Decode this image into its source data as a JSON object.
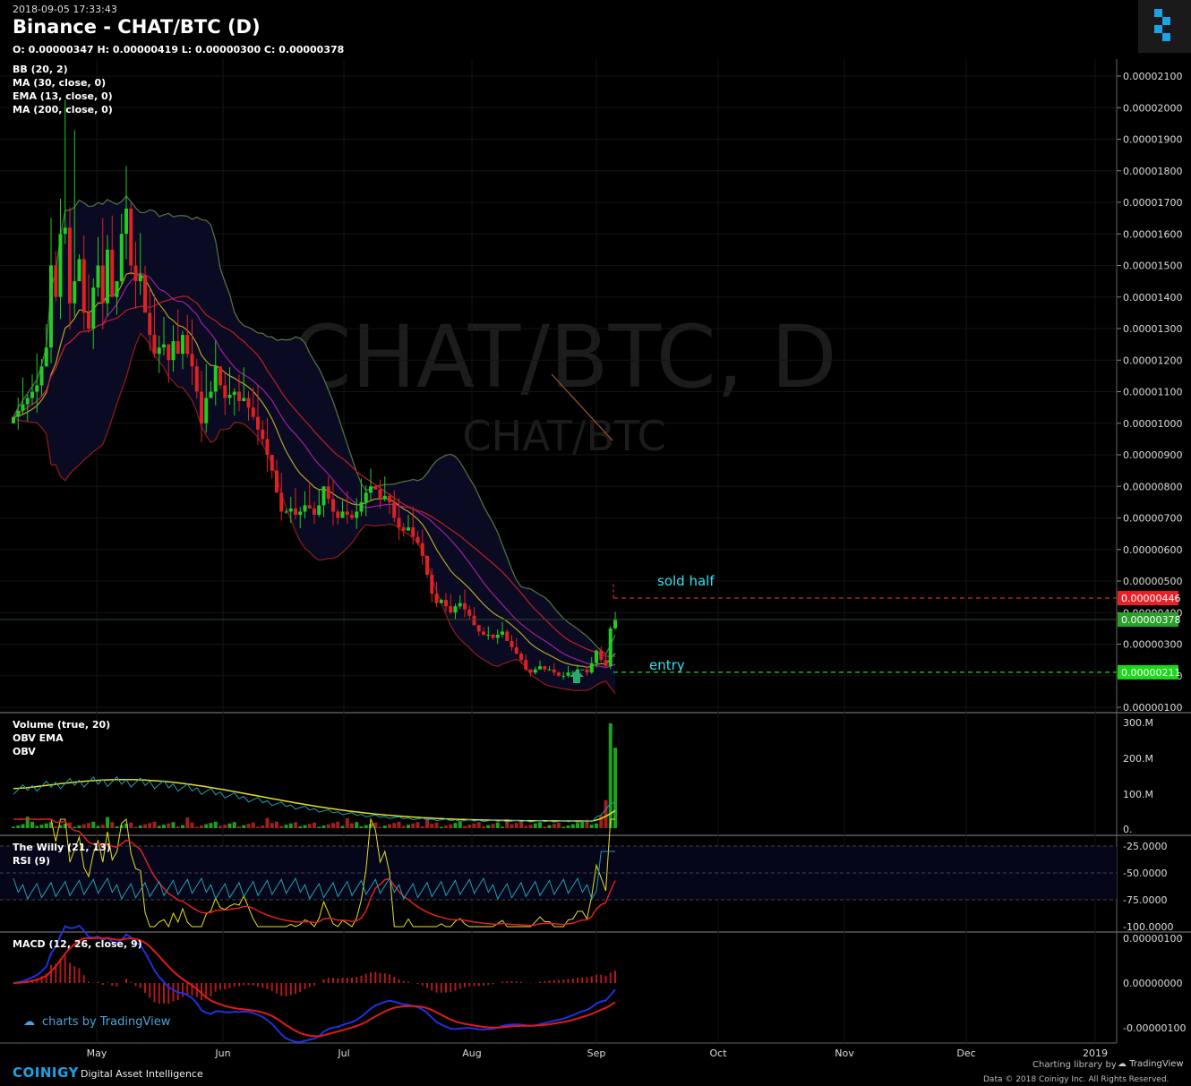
{
  "header": {
    "timestamp": "2018-09-05 17:33:43",
    "title": "Binance - CHAT/BTC (D)",
    "ohlc": "O: 0.00000347 H: 0.00000419 L: 0.00000300 C: 0.00000378"
  },
  "main_indicators": [
    "BB (20, 2)",
    "MA (30, close, 0)",
    "EMA (13, close, 0)",
    "MA (200, close, 0)"
  ],
  "volume_indicators": [
    "Volume (true, 20)",
    "OBV EMA",
    "OBV"
  ],
  "rsi_indicators": [
    "The Willy (21, 13)",
    "RSI (9)"
  ],
  "macd_indicators": [
    "MACD (12, 26, close, 9)"
  ],
  "watermark": {
    "big": "CHAT/BTC, D",
    "small": "CHAT/BTC"
  },
  "annotations": {
    "sold_half": "sold half",
    "entry": "entry"
  },
  "price_labels": {
    "sold": "0.00000446",
    "last": "0.00000378",
    "entry": "0.00000211"
  },
  "colors": {
    "up": "#22cc22",
    "down": "#dd2222",
    "sold_line": "#ff3333",
    "entry_line": "#33ff33",
    "annotation": "#33e0f0",
    "bb": "#4a6a3a"
  },
  "price_axis_ticks": [
    "0.00002100",
    "0.00002000",
    "0.00001900",
    "0.00001800",
    "0.00001700",
    "0.00001600",
    "0.00001500",
    "0.00001400",
    "0.00001300",
    "0.00001200",
    "0.00001100",
    "0.00001000",
    "0.00000900",
    "0.00000800",
    "0.00000700",
    "0.00000600",
    "0.00000500",
    "0.00000400",
    "0.00000300",
    "0.00000200",
    "0.00000100"
  ],
  "volume_axis_ticks": [
    "300.M",
    "200.M",
    "100.M",
    "0."
  ],
  "rsi_axis_ticks": [
    "-25.0000",
    "-50.0000",
    "-75.0000",
    "-100.0000"
  ],
  "macd_axis_ticks": [
    "0.00000100",
    "0.00000000",
    "-0.00000100"
  ],
  "time_axis": [
    "May",
    "Jun",
    "Jul",
    "Aug",
    "Sep",
    "Oct",
    "Nov",
    "Dec",
    "2019"
  ],
  "footer": {
    "brand": "COINIGY",
    "tagline": "Digital Asset Intelligence",
    "charting_by": "Charting library by",
    "tv_brand": "TradingView",
    "data_credit": "Data © 2018  Coinigy Inc. All Rights Reserved.",
    "charts_by": "charts by TradingView"
  },
  "chart_data": {
    "type": "candlestick",
    "symbol": "CHAT/BTC",
    "exchange": "Binance",
    "interval": "D",
    "ylim": [
      1e-06,
      2.15e-05
    ],
    "closes": [
      1.02e-05,
      1.04e-05,
      1.06e-05,
      1.08e-05,
      1.1e-05,
      1.12e-05,
      1.18e-05,
      1.24e-05,
      1.5e-05,
      1.4e-05,
      1.6e-05,
      1.62e-05,
      1.38e-05,
      1.45e-05,
      1.52e-05,
      1.35e-05,
      1.3e-05,
      1.43e-05,
      1.5e-05,
      1.38e-05,
      1.55e-05,
      1.4e-05,
      1.45e-05,
      1.6e-05,
      1.68e-05,
      1.5e-05,
      1.45e-05,
      1.47e-05,
      1.35e-05,
      1.28e-05,
      1.22e-05,
      1.24e-05,
      1.25e-05,
      1.2e-05,
      1.26e-05,
      1.22e-05,
      1.28e-05,
      1.22e-05,
      1.18e-05,
      1.1e-05,
      1e-05,
      1.08e-05,
      1.1e-05,
      1.18e-05,
      1.12e-05,
      1.08e-05,
      1.09e-05,
      1.1e-05,
      1.07e-05,
      1.08e-05,
      1.05e-05,
      1.02e-05,
      9.8e-06,
      9.5e-06,
      9e-06,
      8.5e-06,
      7.8e-06,
      7.2e-06,
      7.2e-06,
      7.3e-06,
      7.1e-06,
      7.2e-06,
      7.4e-06,
      7.3e-06,
      7.1e-06,
      7.4e-06,
      8e-06,
      7.6e-06,
      7.2e-06,
      7e-06,
      7.2e-06,
      7.1e-06,
      7e-06,
      7.2e-06,
      7.5e-06,
      7.8e-06,
      8e-06,
      7.9e-06,
      7.6e-06,
      7.7e-06,
      7.5e-06,
      7e-06,
      6.7e-06,
      6.6e-06,
      6.7e-06,
      6.4e-06,
      6.2e-06,
      5.8e-06,
      5.2e-06,
      4.6e-06,
      4.3e-06,
      4.4e-06,
      4.2e-06,
      4e-06,
      4.2e-06,
      4.3e-06,
      4.1e-06,
      3.9e-06,
      3.6e-06,
      3.4e-06,
      3.3e-06,
      3.3e-06,
      3.2e-06,
      3.3e-06,
      3.4e-06,
      3.1e-06,
      2.9e-06,
      2.7e-06,
      2.5e-06,
      2.2e-06,
      2.1e-06,
      2.2e-06,
      2.3e-06,
      2.2e-06,
      2.2e-06,
      2.1e-06,
      2e-06,
      2e-06,
      2.1e-06,
      2.1e-06,
      2.2e-06,
      2.2e-06,
      2.1e-06,
      2.4e-06,
      2.8e-06,
      2.5e-06,
      2.3e-06,
      3.5e-06,
      3.8e-06
    ],
    "entry_price": 2.11e-06,
    "sold_price": 4.46e-06,
    "last_price": 3.78e-06,
    "volume_ylim": [
      0,
      320000000
    ],
    "rsi_ylim": [
      -100,
      -15
    ],
    "macd_ylim": [
      -1.2e-06,
      1.1e-06
    ]
  }
}
